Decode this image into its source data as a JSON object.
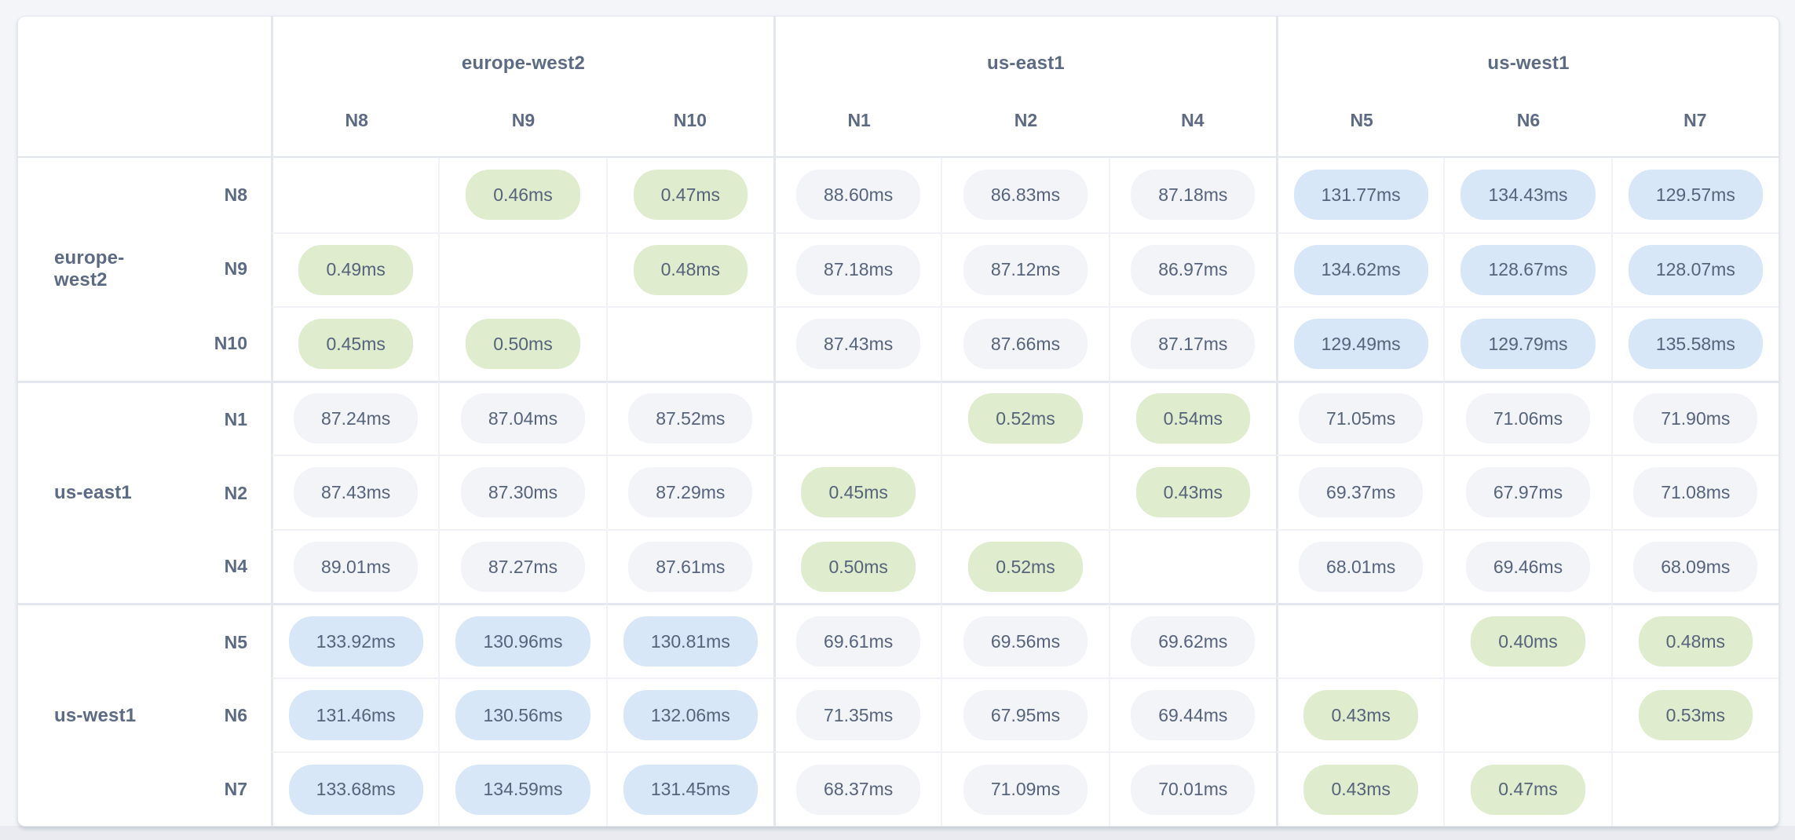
{
  "page": {
    "background_color": "#f3f5f9",
    "bottom_strip_color": "#e9ebf0",
    "card_color": "#ffffff"
  },
  "matrix": {
    "unit": "ms",
    "groups": [
      {
        "region": "europe-west2",
        "nodes": [
          "N8",
          "N9",
          "N10"
        ]
      },
      {
        "region": "us-east1",
        "nodes": [
          "N1",
          "N2",
          "N4"
        ]
      },
      {
        "region": "us-west1",
        "nodes": [
          "N5",
          "N6",
          "N7"
        ]
      }
    ],
    "rows": [
      {
        "region": "europe-west2",
        "node": "N8",
        "values": [
          null,
          "0.46ms",
          "0.47ms",
          "88.60ms",
          "86.83ms",
          "87.18ms",
          "131.77ms",
          "134.43ms",
          "129.57ms"
        ]
      },
      {
        "region": "europe-west2",
        "node": "N9",
        "values": [
          "0.49ms",
          null,
          "0.48ms",
          "87.18ms",
          "87.12ms",
          "86.97ms",
          "134.62ms",
          "128.67ms",
          "128.07ms"
        ]
      },
      {
        "region": "europe-west2",
        "node": "N10",
        "values": [
          "0.45ms",
          "0.50ms",
          null,
          "87.43ms",
          "87.66ms",
          "87.17ms",
          "129.49ms",
          "129.79ms",
          "135.58ms"
        ]
      },
      {
        "region": "us-east1",
        "node": "N1",
        "values": [
          "87.24ms",
          "87.04ms",
          "87.52ms",
          null,
          "0.52ms",
          "0.54ms",
          "71.05ms",
          "71.06ms",
          "71.90ms"
        ]
      },
      {
        "region": "us-east1",
        "node": "N2",
        "values": [
          "87.43ms",
          "87.30ms",
          "87.29ms",
          "0.45ms",
          null,
          "0.43ms",
          "69.37ms",
          "67.97ms",
          "71.08ms"
        ]
      },
      {
        "region": "us-east1",
        "node": "N4",
        "values": [
          "89.01ms",
          "87.27ms",
          "87.61ms",
          "0.50ms",
          "0.52ms",
          null,
          "68.01ms",
          "69.46ms",
          "68.09ms"
        ]
      },
      {
        "region": "us-west1",
        "node": "N5",
        "values": [
          "133.92ms",
          "130.96ms",
          "130.81ms",
          "69.61ms",
          "69.56ms",
          "69.62ms",
          null,
          "0.40ms",
          "0.48ms"
        ]
      },
      {
        "region": "us-west1",
        "node": "N6",
        "values": [
          "131.46ms",
          "130.56ms",
          "132.06ms",
          "71.35ms",
          "67.95ms",
          "69.44ms",
          "0.43ms",
          null,
          "0.53ms"
        ]
      },
      {
        "region": "us-west1",
        "node": "N7",
        "values": [
          "133.68ms",
          "134.59ms",
          "131.45ms",
          "68.37ms",
          "71.09ms",
          "70.01ms",
          "0.43ms",
          "0.47ms",
          null
        ]
      }
    ]
  },
  "colors": {
    "same_region_pill": "#dfeccd",
    "cross_region_near_pill": "#f2f4f8",
    "cross_region_far_pill": "#d7e7f7",
    "value_text": "#55637b",
    "label_text": "#5c6a83"
  },
  "chart_data": {
    "type": "heatmap",
    "title": "",
    "unit": "ms",
    "x_labels": [
      "N8",
      "N9",
      "N10",
      "N1",
      "N2",
      "N4",
      "N5",
      "N6",
      "N7"
    ],
    "y_labels": [
      "N8",
      "N9",
      "N10",
      "N1",
      "N2",
      "N4",
      "N5",
      "N6",
      "N7"
    ],
    "x_region_groups": [
      {
        "label": "europe-west2",
        "span": [
          "N8",
          "N9",
          "N10"
        ]
      },
      {
        "label": "us-east1",
        "span": [
          "N1",
          "N2",
          "N4"
        ]
      },
      {
        "label": "us-west1",
        "span": [
          "N5",
          "N6",
          "N7"
        ]
      }
    ],
    "y_region_groups": [
      {
        "label": "europe-west2",
        "span": [
          "N8",
          "N9",
          "N10"
        ]
      },
      {
        "label": "us-east1",
        "span": [
          "N1",
          "N2",
          "N4"
        ]
      },
      {
        "label": "us-west1",
        "span": [
          "N5",
          "N6",
          "N7"
        ]
      }
    ],
    "values_ms": [
      [
        null,
        0.46,
        0.47,
        88.6,
        86.83,
        87.18,
        131.77,
        134.43,
        129.57
      ],
      [
        0.49,
        null,
        0.48,
        87.18,
        87.12,
        86.97,
        134.62,
        128.67,
        128.07
      ],
      [
        0.45,
        0.5,
        null,
        87.43,
        87.66,
        87.17,
        129.49,
        129.79,
        135.58
      ],
      [
        87.24,
        87.04,
        87.52,
        null,
        0.52,
        0.54,
        71.05,
        71.06,
        71.9
      ],
      [
        87.43,
        87.3,
        87.29,
        0.45,
        null,
        0.43,
        69.37,
        67.97,
        71.08
      ],
      [
        89.01,
        87.27,
        87.61,
        0.5,
        0.52,
        null,
        68.01,
        69.46,
        68.09
      ],
      [
        133.92,
        130.96,
        130.81,
        69.61,
        69.56,
        69.62,
        null,
        0.4,
        0.48
      ],
      [
        131.46,
        130.56,
        132.06,
        71.35,
        67.95,
        69.44,
        0.43,
        null,
        0.53
      ],
      [
        133.68,
        134.59,
        131.45,
        68.37,
        71.09,
        70.01,
        0.43,
        0.47,
        null
      ]
    ],
    "color_encoding": {
      "same_region_low_latency": "#dfeccd",
      "cross_region_mid_latency": "#f2f4f8",
      "cross_region_high_latency": "#d7e7f7"
    },
    "legend": "none",
    "grid": true
  }
}
